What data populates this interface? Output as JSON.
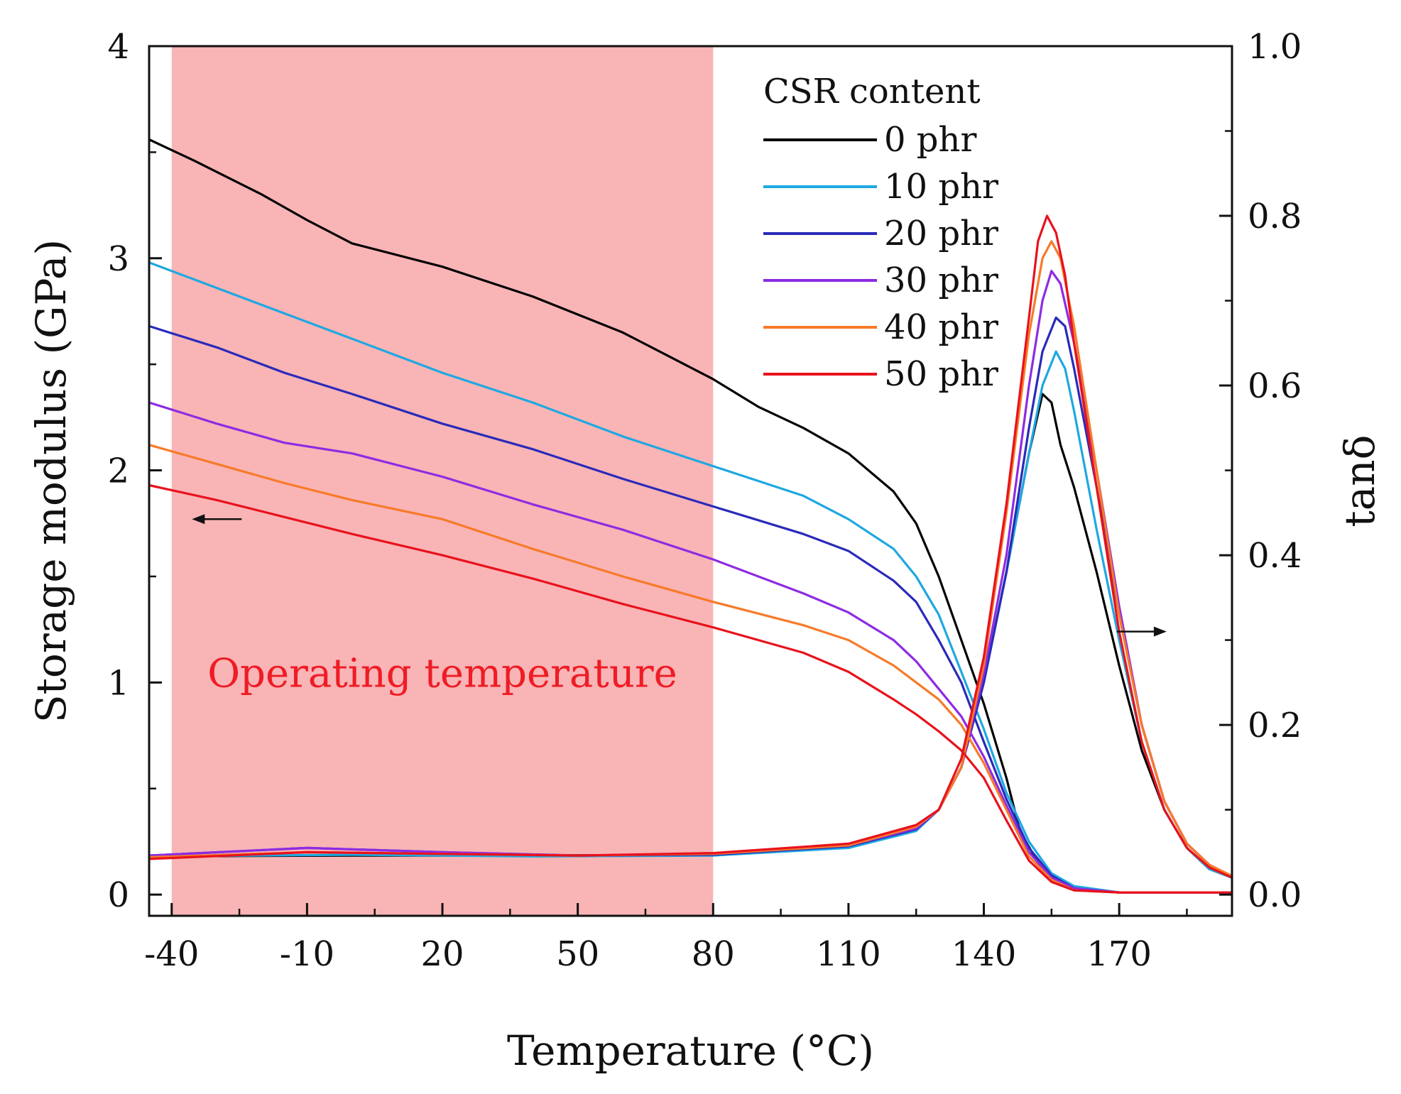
{
  "chart_data": {
    "type": "line",
    "xlabel": "Temperature (°C)",
    "ylabel_left": "Storage modulus (GPa)",
    "ylabel_right": "tanδ",
    "xlim": [
      -45,
      195
    ],
    "ylim_left": [
      -0.1,
      4
    ],
    "ylim_right": [
      -0.025,
      1
    ],
    "x_ticks": [
      -40,
      -10,
      20,
      50,
      80,
      110,
      140,
      170
    ],
    "y_left_ticks": [
      0,
      1,
      2,
      3,
      4
    ],
    "y_right_ticks": [
      "0.0",
      "0.2",
      "0.4",
      "0.6",
      "0.8",
      "1.0"
    ],
    "grid": false,
    "legend": {
      "title": "CSR content",
      "position": "top-right",
      "entries": [
        "0 phr",
        "10 phr",
        "20 phr",
        "30 phr",
        "40 phr",
        "50 phr"
      ]
    },
    "annotation": {
      "text": "Operating temperature",
      "shaded_range": [
        -40,
        80
      ],
      "color": "#f9b4b6",
      "text_color": "#ee1c25"
    },
    "arrows": [
      {
        "axis": "left",
        "direction": "left",
        "x": -30,
        "y": 1.77
      },
      {
        "axis": "right",
        "direction": "right",
        "x": 175,
        "y": 0.31
      }
    ],
    "series": [
      {
        "name": "0 phr",
        "color": "#000000",
        "storage_modulus": [
          [
            -45,
            3.56
          ],
          [
            -35,
            3.46
          ],
          [
            -20,
            3.3
          ],
          [
            -10,
            3.18
          ],
          [
            0,
            3.07
          ],
          [
            20,
            2.96
          ],
          [
            40,
            2.82
          ],
          [
            60,
            2.65
          ],
          [
            70,
            2.54
          ],
          [
            80,
            2.43
          ],
          [
            90,
            2.3
          ],
          [
            100,
            2.2
          ],
          [
            110,
            2.08
          ],
          [
            120,
            1.9
          ],
          [
            125,
            1.75
          ],
          [
            130,
            1.5
          ],
          [
            135,
            1.2
          ],
          [
            140,
            0.9
          ],
          [
            145,
            0.55
          ],
          [
            148,
            0.3
          ],
          [
            152,
            0.15
          ],
          [
            155,
            0.08
          ],
          [
            160,
            0.03
          ],
          [
            170,
            0.01
          ],
          [
            195,
            0.01
          ]
        ],
        "tan_delta": [
          [
            -45,
            0.045
          ],
          [
            0,
            0.046
          ],
          [
            40,
            0.046
          ],
          [
            80,
            0.047
          ],
          [
            110,
            0.058
          ],
          [
            125,
            0.078
          ],
          [
            130,
            0.1
          ],
          [
            135,
            0.15
          ],
          [
            140,
            0.25
          ],
          [
            145,
            0.38
          ],
          [
            150,
            0.52
          ],
          [
            153,
            0.59
          ],
          [
            155,
            0.58
          ],
          [
            157,
            0.53
          ],
          [
            160,
            0.48
          ],
          [
            165,
            0.38
          ],
          [
            170,
            0.27
          ],
          [
            175,
            0.17
          ],
          [
            180,
            0.1
          ],
          [
            185,
            0.055
          ],
          [
            190,
            0.03
          ],
          [
            195,
            0.02
          ]
        ]
      },
      {
        "name": "10 phr",
        "color": "#1ea8e1",
        "storage_modulus": [
          [
            -45,
            2.98
          ],
          [
            -30,
            2.86
          ],
          [
            -15,
            2.74
          ],
          [
            0,
            2.62
          ],
          [
            20,
            2.46
          ],
          [
            40,
            2.32
          ],
          [
            60,
            2.16
          ],
          [
            80,
            2.02
          ],
          [
            100,
            1.88
          ],
          [
            110,
            1.77
          ],
          [
            120,
            1.63
          ],
          [
            125,
            1.5
          ],
          [
            130,
            1.32
          ],
          [
            135,
            1.05
          ],
          [
            140,
            0.78
          ],
          [
            145,
            0.48
          ],
          [
            150,
            0.25
          ],
          [
            155,
            0.1
          ],
          [
            160,
            0.04
          ],
          [
            170,
            0.01
          ],
          [
            195,
            0.01
          ]
        ],
        "tan_delta": [
          [
            -45,
            0.045
          ],
          [
            0,
            0.047
          ],
          [
            40,
            0.045
          ],
          [
            80,
            0.046
          ],
          [
            110,
            0.055
          ],
          [
            125,
            0.075
          ],
          [
            130,
            0.1
          ],
          [
            135,
            0.15
          ],
          [
            140,
            0.25
          ],
          [
            145,
            0.38
          ],
          [
            150,
            0.52
          ],
          [
            153,
            0.6
          ],
          [
            156,
            0.64
          ],
          [
            158,
            0.62
          ],
          [
            160,
            0.57
          ],
          [
            165,
            0.43
          ],
          [
            170,
            0.3
          ],
          [
            175,
            0.18
          ],
          [
            180,
            0.1
          ],
          [
            185,
            0.055
          ],
          [
            190,
            0.03
          ],
          [
            195,
            0.02
          ]
        ]
      },
      {
        "name": "20 phr",
        "color": "#2a2ab9",
        "storage_modulus": [
          [
            -45,
            2.68
          ],
          [
            -30,
            2.58
          ],
          [
            -15,
            2.46
          ],
          [
            0,
            2.36
          ],
          [
            20,
            2.22
          ],
          [
            40,
            2.1
          ],
          [
            60,
            1.96
          ],
          [
            80,
            1.83
          ],
          [
            100,
            1.7
          ],
          [
            110,
            1.62
          ],
          [
            120,
            1.48
          ],
          [
            125,
            1.38
          ],
          [
            130,
            1.2
          ],
          [
            135,
            1.0
          ],
          [
            140,
            0.72
          ],
          [
            145,
            0.45
          ],
          [
            150,
            0.22
          ],
          [
            155,
            0.09
          ],
          [
            160,
            0.03
          ],
          [
            170,
            0.01
          ],
          [
            195,
            0.01
          ]
        ],
        "tan_delta": [
          [
            -45,
            0.046
          ],
          [
            -10,
            0.055
          ],
          [
            20,
            0.05
          ],
          [
            50,
            0.046
          ],
          [
            80,
            0.047
          ],
          [
            110,
            0.057
          ],
          [
            125,
            0.077
          ],
          [
            130,
            0.1
          ],
          [
            135,
            0.15
          ],
          [
            140,
            0.25
          ],
          [
            145,
            0.38
          ],
          [
            150,
            0.55
          ],
          [
            153,
            0.64
          ],
          [
            156,
            0.68
          ],
          [
            158,
            0.67
          ],
          [
            160,
            0.62
          ],
          [
            165,
            0.48
          ],
          [
            170,
            0.33
          ],
          [
            175,
            0.2
          ],
          [
            180,
            0.11
          ],
          [
            185,
            0.06
          ],
          [
            190,
            0.035
          ],
          [
            195,
            0.02
          ]
        ]
      },
      {
        "name": "30 phr",
        "color": "#8e2be2",
        "storage_modulus": [
          [
            -45,
            2.32
          ],
          [
            -30,
            2.22
          ],
          [
            -15,
            2.13
          ],
          [
            0,
            2.08
          ],
          [
            20,
            1.97
          ],
          [
            40,
            1.84
          ],
          [
            60,
            1.72
          ],
          [
            80,
            1.58
          ],
          [
            100,
            1.42
          ],
          [
            110,
            1.33
          ],
          [
            120,
            1.2
          ],
          [
            125,
            1.1
          ],
          [
            130,
            0.97
          ],
          [
            135,
            0.84
          ],
          [
            140,
            0.65
          ],
          [
            145,
            0.42
          ],
          [
            150,
            0.2
          ],
          [
            155,
            0.08
          ],
          [
            160,
            0.03
          ],
          [
            170,
            0.01
          ],
          [
            195,
            0.01
          ]
        ],
        "tan_delta": [
          [
            -45,
            0.046
          ],
          [
            -10,
            0.055
          ],
          [
            20,
            0.05
          ],
          [
            50,
            0.046
          ],
          [
            80,
            0.048
          ],
          [
            110,
            0.058
          ],
          [
            125,
            0.078
          ],
          [
            130,
            0.1
          ],
          [
            135,
            0.15
          ],
          [
            140,
            0.26
          ],
          [
            145,
            0.4
          ],
          [
            150,
            0.6
          ],
          [
            153,
            0.7
          ],
          [
            155,
            0.735
          ],
          [
            157,
            0.72
          ],
          [
            160,
            0.65
          ],
          [
            165,
            0.5
          ],
          [
            170,
            0.34
          ],
          [
            175,
            0.2
          ],
          [
            180,
            0.11
          ],
          [
            185,
            0.06
          ],
          [
            190,
            0.035
          ],
          [
            195,
            0.02
          ]
        ]
      },
      {
        "name": "40 phr",
        "color": "#f77a29",
        "storage_modulus": [
          [
            -45,
            2.12
          ],
          [
            -30,
            2.03
          ],
          [
            -15,
            1.94
          ],
          [
            0,
            1.86
          ],
          [
            20,
            1.77
          ],
          [
            40,
            1.63
          ],
          [
            60,
            1.5
          ],
          [
            80,
            1.38
          ],
          [
            100,
            1.27
          ],
          [
            110,
            1.2
          ],
          [
            120,
            1.08
          ],
          [
            125,
            1.0
          ],
          [
            130,
            0.92
          ],
          [
            135,
            0.8
          ],
          [
            140,
            0.62
          ],
          [
            145,
            0.4
          ],
          [
            150,
            0.18
          ],
          [
            155,
            0.07
          ],
          [
            160,
            0.02
          ],
          [
            170,
            0.01
          ],
          [
            195,
            0.01
          ]
        ],
        "tan_delta": [
          [
            -45,
            0.044
          ],
          [
            -10,
            0.05
          ],
          [
            20,
            0.048
          ],
          [
            50,
            0.046
          ],
          [
            80,
            0.048
          ],
          [
            110,
            0.058
          ],
          [
            125,
            0.08
          ],
          [
            130,
            0.1
          ],
          [
            135,
            0.15
          ],
          [
            140,
            0.27
          ],
          [
            145,
            0.45
          ],
          [
            150,
            0.66
          ],
          [
            153,
            0.75
          ],
          [
            155,
            0.77
          ],
          [
            157,
            0.75
          ],
          [
            160,
            0.67
          ],
          [
            165,
            0.5
          ],
          [
            170,
            0.33
          ],
          [
            175,
            0.2
          ],
          [
            180,
            0.11
          ],
          [
            185,
            0.06
          ],
          [
            190,
            0.035
          ],
          [
            195,
            0.022
          ]
        ]
      },
      {
        "name": "50 phr",
        "color": "#e8121c",
        "storage_modulus": [
          [
            -45,
            1.93
          ],
          [
            -30,
            1.86
          ],
          [
            -15,
            1.78
          ],
          [
            0,
            1.7
          ],
          [
            20,
            1.6
          ],
          [
            40,
            1.49
          ],
          [
            60,
            1.37
          ],
          [
            80,
            1.26
          ],
          [
            100,
            1.14
          ],
          [
            110,
            1.05
          ],
          [
            120,
            0.92
          ],
          [
            125,
            0.85
          ],
          [
            130,
            0.77
          ],
          [
            135,
            0.68
          ],
          [
            140,
            0.55
          ],
          [
            145,
            0.35
          ],
          [
            150,
            0.16
          ],
          [
            155,
            0.06
          ],
          [
            160,
            0.02
          ],
          [
            170,
            0.01
          ],
          [
            195,
            0.01
          ]
        ],
        "tan_delta": [
          [
            -45,
            0.042
          ],
          [
            -10,
            0.05
          ],
          [
            20,
            0.048
          ],
          [
            50,
            0.046
          ],
          [
            80,
            0.049
          ],
          [
            110,
            0.06
          ],
          [
            125,
            0.082
          ],
          [
            130,
            0.1
          ],
          [
            135,
            0.16
          ],
          [
            140,
            0.28
          ],
          [
            145,
            0.46
          ],
          [
            150,
            0.68
          ],
          [
            152,
            0.77
          ],
          [
            154,
            0.8
          ],
          [
            156,
            0.78
          ],
          [
            158,
            0.73
          ],
          [
            160,
            0.65
          ],
          [
            165,
            0.48
          ],
          [
            170,
            0.31
          ],
          [
            175,
            0.18
          ],
          [
            180,
            0.1
          ],
          [
            185,
            0.055
          ],
          [
            190,
            0.032
          ],
          [
            195,
            0.02
          ]
        ]
      }
    ]
  }
}
